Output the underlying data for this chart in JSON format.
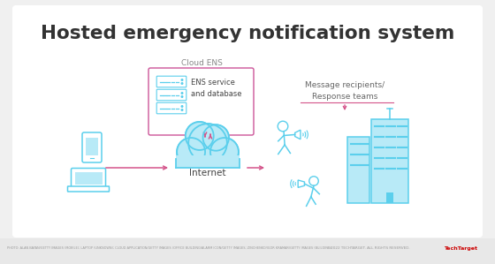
{
  "title": "Hosted emergency notification system",
  "title_fontsize": 15.5,
  "title_fontweight": "bold",
  "title_color": "#333333",
  "bg_color": "#f0f0f0",
  "card_bg": "#ffffff",
  "light_blue": "#5bcfec",
  "light_blue_fill": "#b8eaf7",
  "pink": "#d4548a",
  "text_color": "#555555",
  "label_cloud_ens": "Cloud ENS",
  "label_ens_service": "ENS service\nand database",
  "label_internet": "Internet",
  "label_recipients": "Message recipients/\nResponse teams",
  "footer_left": "PHOTO: ALAN BAYAN/GETTY IMAGES (MOBILE); LAPTOP (UNKNOWN); CLOUD APPLICATION/GETTY IMAGES (OFFICE BUILDING/ALARM ICON/GETTY IMAGES; ZINCHENKO/IGOR KRAMAR/GETTY IMAGES (BUILDING)",
  "footer_right": "©2022 TECHTARGET. ALL RIGHTS RESERVED.",
  "footer_brand": "TechTarget"
}
